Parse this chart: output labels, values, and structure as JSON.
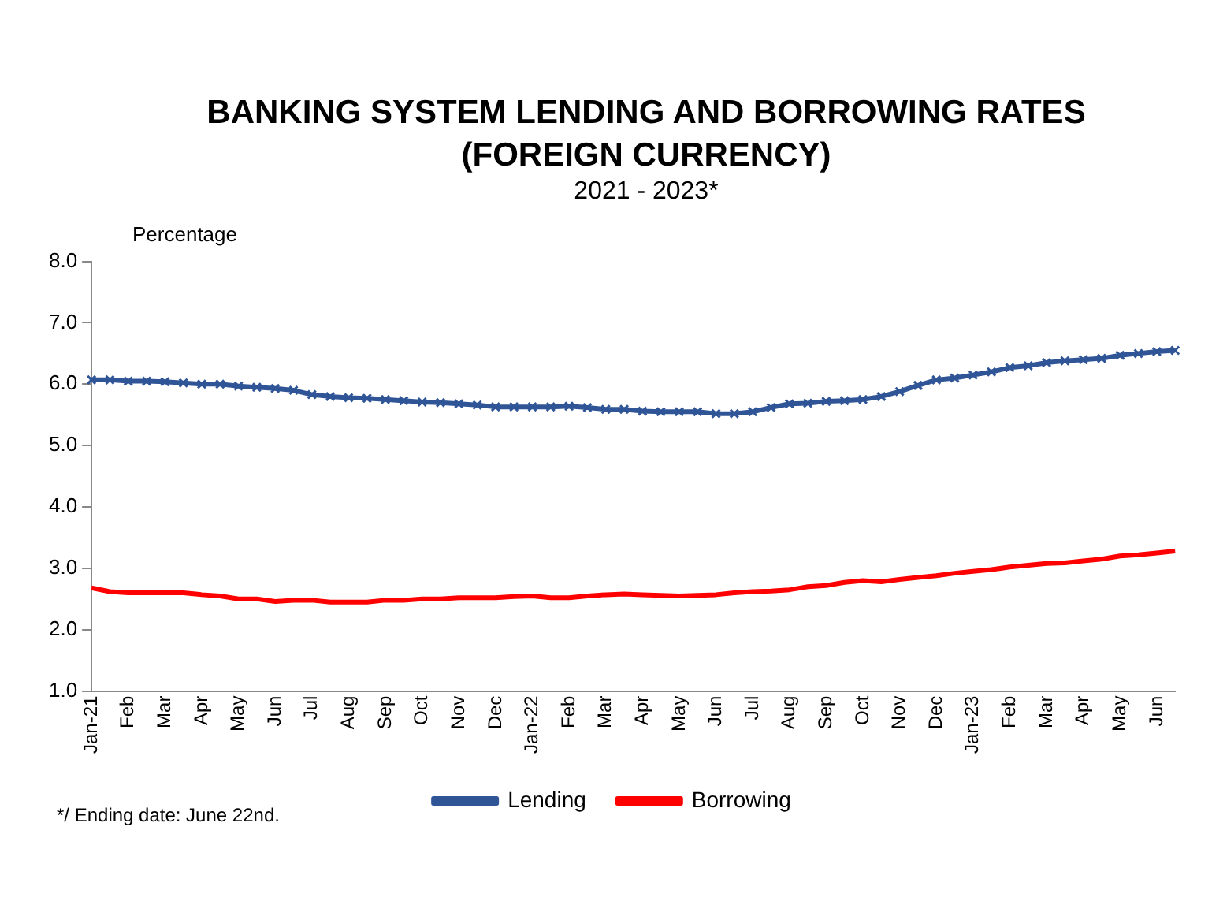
{
  "chart_data": {
    "type": "line",
    "title": "BANKING SYSTEM LENDING AND BORROWING RATES (FOREIGN CURRENCY)",
    "subtitle": "2021 - 2023*",
    "ylabel": "Percentage",
    "annotations": [
      "*/ Ending date: June 22nd."
    ],
    "categories": [
      "Jan-21",
      null,
      "Feb",
      null,
      "Mar",
      null,
      "Apr",
      null,
      "May",
      null,
      "Jun",
      null,
      "Jul",
      null,
      "Aug",
      null,
      "Sep",
      null,
      "Oct",
      null,
      "Nov",
      null,
      "Dec",
      null,
      "Jan-22",
      null,
      "Feb",
      null,
      "Mar",
      null,
      "Apr",
      null,
      "May",
      null,
      "Jun",
      null,
      "Jul",
      null,
      "Aug",
      null,
      "Sep",
      null,
      "Oct",
      null,
      "Nov",
      null,
      "Dec",
      null,
      "Jan-23",
      null,
      "Feb",
      null,
      "Mar",
      null,
      "Apr",
      null,
      "May",
      null,
      "Jun",
      null
    ],
    "series": [
      {
        "name": "Lending",
        "color": "#2f5597",
        "marker": "cross",
        "values": [
          6.07,
          6.07,
          6.05,
          6.05,
          6.04,
          6.02,
          6.0,
          6.0,
          5.97,
          5.95,
          5.93,
          5.9,
          5.83,
          5.8,
          5.78,
          5.77,
          5.75,
          5.73,
          5.71,
          5.7,
          5.68,
          5.66,
          5.63,
          5.63,
          5.63,
          5.63,
          5.64,
          5.62,
          5.59,
          5.59,
          5.56,
          5.55,
          5.55,
          5.55,
          5.52,
          5.52,
          5.55,
          5.62,
          5.68,
          5.69,
          5.72,
          5.73,
          5.75,
          5.8,
          5.88,
          5.98,
          6.07,
          6.1,
          6.15,
          6.2,
          6.27,
          6.3,
          6.35,
          6.38,
          6.4,
          6.42,
          6.47,
          6.5,
          6.53,
          6.55
        ]
      },
      {
        "name": "Borrowing",
        "color": "#ff0000",
        "marker": "none",
        "values": [
          2.68,
          2.62,
          2.6,
          2.6,
          2.6,
          2.6,
          2.57,
          2.55,
          2.5,
          2.5,
          2.46,
          2.48,
          2.48,
          2.45,
          2.45,
          2.45,
          2.48,
          2.48,
          2.5,
          2.5,
          2.52,
          2.52,
          2.52,
          2.54,
          2.55,
          2.52,
          2.52,
          2.55,
          2.57,
          2.58,
          2.57,
          2.56,
          2.55,
          2.56,
          2.57,
          2.6,
          2.62,
          2.63,
          2.65,
          2.7,
          2.72,
          2.77,
          2.8,
          2.78,
          2.82,
          2.85,
          2.88,
          2.92,
          2.95,
          2.98,
          3.02,
          3.05,
          3.08,
          3.09,
          3.12,
          3.15,
          3.2,
          3.22,
          3.25,
          3.28
        ]
      }
    ],
    "ylim": [
      1,
      8
    ],
    "yticks": [
      {
        "value": 1,
        "label": "1.0"
      },
      {
        "value": 2,
        "label": "2.0"
      },
      {
        "value": 3,
        "label": "3.0"
      },
      {
        "value": 4,
        "label": "4.0"
      },
      {
        "value": 5,
        "label": "5.0"
      },
      {
        "value": 6,
        "label": "6.0"
      },
      {
        "value": 7,
        "label": "7.0"
      },
      {
        "value": 8,
        "label": "8.0"
      }
    ],
    "grid": false,
    "legend": "bottom"
  }
}
